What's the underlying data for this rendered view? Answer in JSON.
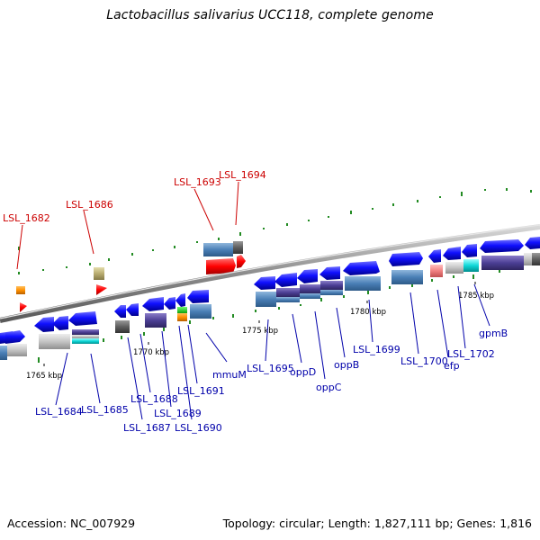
{
  "title": "Lactobacillus salivarius UCC118, complete genome",
  "footer": {
    "accession": "Accession: NC_007929",
    "stats": "Topology: circular; Length: 1,827,111 bp; Genes: 1,816"
  },
  "colors": {
    "gene_forward_top": "#1a1aff",
    "rna_label": "#cc0000",
    "protein_label": "#0000aa",
    "backbone": "#8c8c8c",
    "gc_marks": "#228b22"
  },
  "ticks": [
    "1765 kbp",
    "1770 kbp",
    "1775 kbp",
    "1780 kbp",
    "1785 kbp"
  ],
  "rna_labels": [
    "LSL_1682",
    "LSL_1686",
    "LSL_1693",
    "LSL_1694"
  ],
  "gene_labels": [
    "LSL_1684",
    "LSL_1685",
    "LSL_1687",
    "LSL_1688",
    "LSL_1689",
    "LSL_1690",
    "LSL_1691",
    "mmuM",
    "LSL_1695",
    "oppD",
    "oppC",
    "oppB",
    "LSL_1699",
    "LSL_1700",
    "efp",
    "LSL_1702",
    "gpmB"
  ]
}
